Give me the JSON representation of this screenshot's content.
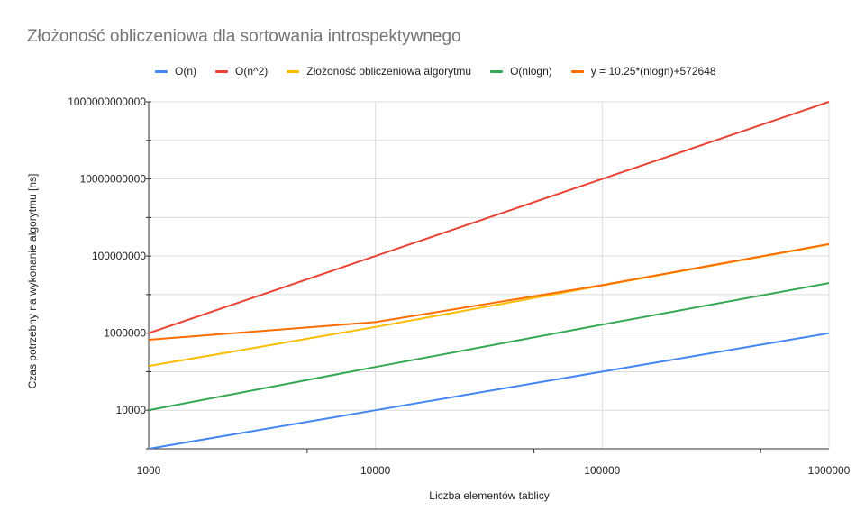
{
  "chart_data": {
    "type": "line",
    "title": "Złożoność obliczeniowa dla sortowania introspektywnego",
    "xlabel": "Liczba elementów tablicy",
    "ylabel": "Czas potrzebny na wykonanie algorytmu [ns]",
    "x_scale": "log",
    "y_scale": "log",
    "x": [
      1000,
      10000,
      100000,
      1000000
    ],
    "xlim": [
      1000,
      1000000
    ],
    "ylim": [
      1000,
      1000000000000
    ],
    "x_ticks": [
      "1000",
      "10000",
      "100000",
      "1000000"
    ],
    "y_ticks": [
      "10000",
      "1000000",
      "100000000",
      "10000000000",
      "1000000000000"
    ],
    "grid": true,
    "legend_position": "top",
    "series": [
      {
        "name": "O(n)",
        "color": "#4285F4",
        "values": [
          1000,
          10000,
          100000,
          1000000
        ]
      },
      {
        "name": "O(n^2)",
        "color": "#EA4335",
        "values": [
          1000000,
          100000000,
          10000000000,
          1000000000000
        ]
      },
      {
        "name": "Złożoność obliczeniowa algorytmu",
        "color": "#FBBC04",
        "values": [
          140000,
          1450000,
          17200000,
          200000000
        ]
      },
      {
        "name": "O(nlogn)",
        "color": "#34A853",
        "values": [
          10000,
          132900,
          1661000,
          19930000
        ]
      },
      {
        "name": "y = 10.25*(nlogn)+572648",
        "color": "#FF6D01",
        "values": [
          674800,
          1935000,
          17600000,
          204900000
        ]
      }
    ]
  }
}
